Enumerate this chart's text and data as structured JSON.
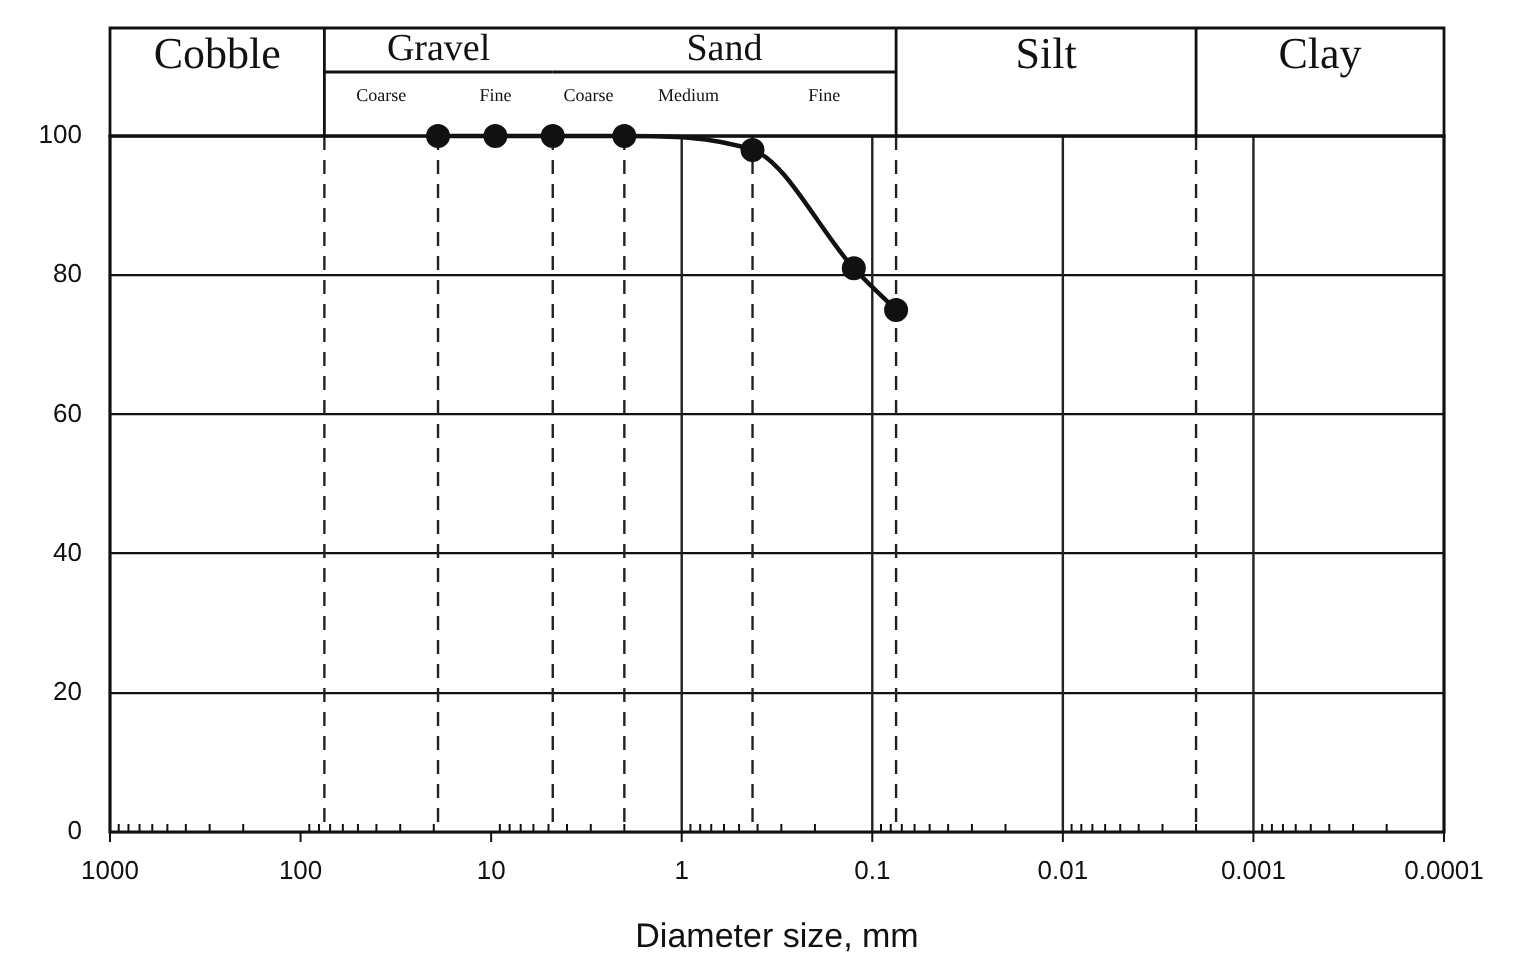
{
  "chart_data": {
    "type": "line",
    "xlabel": "Diameter size, mm",
    "annotations": [
      "Cobble",
      "Gravel",
      "Sand",
      "Silt",
      "Clay",
      "Coarse",
      "Fine",
      "Coarse",
      "Medium",
      "Fine"
    ],
    "x": [
      19,
      9.5,
      4.75,
      2,
      0.425,
      0.125,
      0.075
    ],
    "series": [
      {
        "color": "#111111",
        "values": [
          100,
          100,
          100,
          100,
          98,
          81,
          75
        ]
      }
    ],
    "marker": "circle",
    "line_style": "solid",
    "log": "x",
    "grid": "y",
    "xlim": [
      1000,
      0.0001
    ],
    "xticks": [
      1000,
      {
        "value": 900,
        "label": null
      },
      {
        "value": 800,
        "label": null
      },
      {
        "value": 700,
        "label": null
      },
      {
        "value": 600,
        "label": null
      },
      {
        "value": 500,
        "label": null
      },
      {
        "value": 400,
        "label": null
      },
      {
        "value": 300,
        "label": null
      },
      {
        "value": 200,
        "label": null
      },
      100,
      {
        "value": 90,
        "label": null
      },
      {
        "value": 80,
        "label": null
      },
      {
        "value": 70,
        "label": null
      },
      {
        "value": 60,
        "label": null
      },
      {
        "value": 50,
        "label": null
      },
      {
        "value": 40,
        "label": null
      },
      {
        "value": 30,
        "label": null
      },
      {
        "value": 20,
        "label": null
      },
      10,
      {
        "value": 9,
        "label": null
      },
      {
        "value": 8,
        "label": null
      },
      {
        "value": 7,
        "label": null
      },
      {
        "value": 6,
        "label": null
      },
      {
        "value": 5,
        "label": null
      },
      {
        "value": 4,
        "label": null
      },
      {
        "value": 3,
        "label": null
      },
      {
        "value": 2,
        "label": null
      },
      1,
      {
        "value": 0.9,
        "label": null
      },
      {
        "value": 0.8,
        "label": null
      },
      {
        "value": 0.7,
        "label": null
      },
      {
        "value": 0.6,
        "label": null
      },
      {
        "value": 0.5,
        "label": null
      },
      {
        "value": 0.4,
        "label": null
      },
      {
        "value": 0.3,
        "label": null
      },
      {
        "value": 0.2,
        "label": null
      },
      0.1,
      {
        "value": 0.09,
        "label": null
      },
      {
        "value": 0.08,
        "label": null
      },
      {
        "value": 0.07,
        "label": null
      },
      {
        "value": 0.06,
        "label": null
      },
      {
        "value": 0.05,
        "label": null
      },
      {
        "value": 0.04,
        "label": null
      },
      {
        "value": 0.03,
        "label": null
      },
      {
        "value": 0.02,
        "label": null
      },
      0.01,
      {
        "value": 0.009,
        "label": null
      },
      {
        "value": 0.008,
        "label": null
      },
      {
        "value": 0.007,
        "label": null
      },
      {
        "value": 0.006,
        "label": null
      },
      {
        "value": 0.005,
        "label": null
      },
      {
        "value": 0.004,
        "label": null
      },
      {
        "value": 0.003,
        "label": null
      },
      {
        "value": 0.002,
        "label": null
      },
      0.001,
      {
        "value": 0.0009,
        "label": null
      },
      {
        "value": 0.0008,
        "label": null
      },
      {
        "value": 0.0007,
        "label": null
      },
      {
        "value": 0.0006,
        "label": null
      },
      {
        "value": 0.0005,
        "label": null
      },
      {
        "value": 0.0004,
        "label": null
      },
      {
        "value": 0.0003,
        "label": null
      },
      {
        "value": 0.0002,
        "label": null
      },
      0.0001
    ],
    "ylim": [
      0,
      100
    ],
    "yticks": [
      0,
      20,
      40,
      60,
      80,
      100
    ],
    "ref_lines": [
      {
        "axis": "x",
        "value": 75,
        "line_style": "dashed"
      },
      {
        "axis": "x",
        "value": 19,
        "line_style": "dashed"
      },
      {
        "axis": "x",
        "value": 4.75,
        "line_style": "dashed"
      },
      {
        "axis": "x",
        "value": 2,
        "line_style": "dashed"
      },
      {
        "axis": "x",
        "value": 0.425,
        "line_style": "dashed"
      },
      {
        "axis": "x",
        "value": 0.075,
        "line_style": "dashed"
      },
      {
        "axis": "x",
        "value": 0.002,
        "line_style": "dashed"
      },
      {
        "axis": "x",
        "value": 1,
        "line_style": "solid"
      },
      {
        "axis": "x",
        "value": 0.1,
        "line_style": "solid"
      },
      {
        "axis": "x",
        "value": 0.01,
        "line_style": "solid"
      },
      {
        "axis": "x",
        "value": 0.001,
        "line_style": "solid"
      }
    ]
  }
}
